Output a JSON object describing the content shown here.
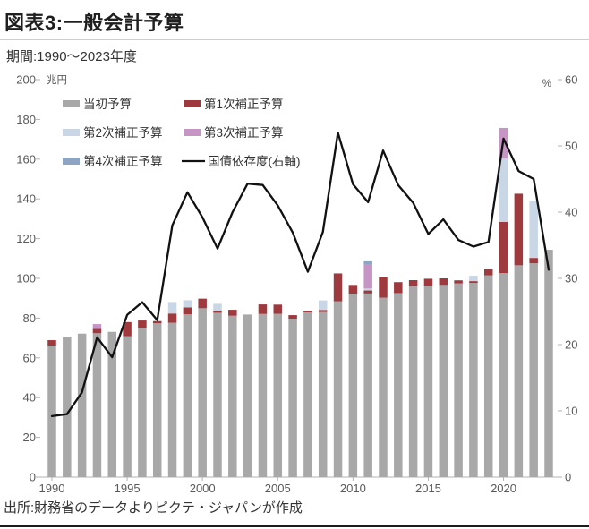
{
  "header": {
    "title": "図表3:一般会計予算",
    "subtitle": "期間:1990〜2023年度"
  },
  "footer": {
    "source": "出所:財務省のデータよりピクテ・ジャパンが作成"
  },
  "axis_units": {
    "left": "兆円",
    "right": "%"
  },
  "colors": {
    "initial": "#a8a8a8",
    "supp1": "#9e393e",
    "supp2": "#c8d6e6",
    "supp3": "#c795c5",
    "supp4": "#8da5c2",
    "line": "#111111",
    "axis": "#b3b3b3",
    "tick_text": "#595959",
    "legend_text": "#333333"
  },
  "chart_data": {
    "type": "bar",
    "subtype": "stacked-bars-with-right-axis-line",
    "title": "図表3:一般会計予算",
    "subtitle": "期間:1990〜2023年度",
    "xlabel": "",
    "ylabel_left": "兆円",
    "ylabel_right": "%",
    "ylim_left": [
      0,
      200
    ],
    "ylim_right": [
      0,
      60
    ],
    "grid": false,
    "legend_position": "top-left-inside",
    "left_ticks": [
      0,
      20,
      40,
      60,
      80,
      100,
      120,
      140,
      160,
      180,
      200
    ],
    "right_ticks": [
      0,
      10,
      20,
      30,
      40,
      50,
      60
    ],
    "x_tick_years": [
      1990,
      1995,
      2000,
      2005,
      2010,
      2015,
      2020
    ],
    "categories": [
      1990,
      1991,
      1992,
      1993,
      1994,
      1995,
      1996,
      1997,
      1998,
      1999,
      2000,
      2001,
      2002,
      2003,
      2004,
      2005,
      2006,
      2007,
      2008,
      2009,
      2010,
      2011,
      2012,
      2013,
      2014,
      2015,
      2016,
      2017,
      2018,
      2019,
      2020,
      2021,
      2022,
      2023
    ],
    "series": [
      {
        "name": "当初予算",
        "color_key": "initial",
        "values": [
          66.2,
          70.3,
          72.2,
          72.4,
          73.1,
          70.9,
          75.1,
          77.4,
          77.7,
          81.9,
          85.0,
          82.7,
          81.2,
          81.8,
          82.1,
          82.2,
          79.7,
          82.9,
          83.1,
          88.5,
          92.3,
          92.4,
          90.3,
          92.6,
          95.9,
          96.3,
          96.7,
          97.5,
          97.7,
          101.5,
          102.7,
          106.6,
          107.6,
          114.4
        ]
      },
      {
        "name": "第1次補正予算",
        "color_key": "supp1",
        "values": [
          2.7,
          0,
          0,
          2.2,
          0,
          7.1,
          3.7,
          1.1,
          4.6,
          3.5,
          4.8,
          1.1,
          3.0,
          0,
          4.8,
          4.6,
          1.8,
          0.9,
          1.0,
          14.0,
          4.4,
          1.5,
          10.3,
          5.5,
          3.2,
          3.5,
          3.3,
          1.5,
          0.9,
          3.2,
          25.7,
          36.0,
          2.7,
          0
        ]
      },
      {
        "name": "第2次補正予算",
        "color_key": "supp2",
        "values": [
          0,
          0,
          0,
          0,
          0,
          0,
          0,
          0,
          5.8,
          3.6,
          0,
          3.4,
          0,
          0,
          0,
          0,
          0,
          0,
          4.8,
          0,
          0,
          1.0,
          0,
          0,
          0,
          0,
          0,
          0,
          2.7,
          0,
          31.9,
          0,
          28.9,
          0
        ]
      },
      {
        "name": "第3次補正予算",
        "color_key": "supp3",
        "values": [
          0,
          0,
          0,
          2.4,
          0,
          0,
          0,
          0,
          0,
          0,
          0,
          0,
          0,
          0,
          0,
          0,
          0,
          0,
          0,
          0,
          0,
          12.1,
          0,
          0,
          0,
          0,
          0,
          0,
          0,
          0,
          15.4,
          0,
          0,
          0
        ]
      },
      {
        "name": "第4次補正予算",
        "color_key": "supp4",
        "values": [
          0,
          0,
          0,
          0,
          0,
          0,
          0,
          0,
          0,
          0,
          0,
          0,
          0,
          0,
          0,
          0,
          0,
          0,
          0,
          0,
          0,
          1.6,
          0,
          0,
          0,
          0,
          0,
          0,
          0,
          0,
          0,
          0,
          0,
          0
        ]
      }
    ],
    "line": {
      "name": "国債依存度(右軸)",
      "axis": "right",
      "color_key": "line",
      "values": [
        9.2,
        9.5,
        12.8,
        21.1,
        18.1,
        24.5,
        26.4,
        23.7,
        38.0,
        43.0,
        39.2,
        34.5,
        40.0,
        44.3,
        44.1,
        41.0,
        36.9,
        31.0,
        37.0,
        52.0,
        44.2,
        41.5,
        49.3,
        44.1,
        41.4,
        36.7,
        38.9,
        35.8,
        34.8,
        35.5,
        51.1,
        46.2,
        45.0,
        31.3
      ]
    }
  }
}
